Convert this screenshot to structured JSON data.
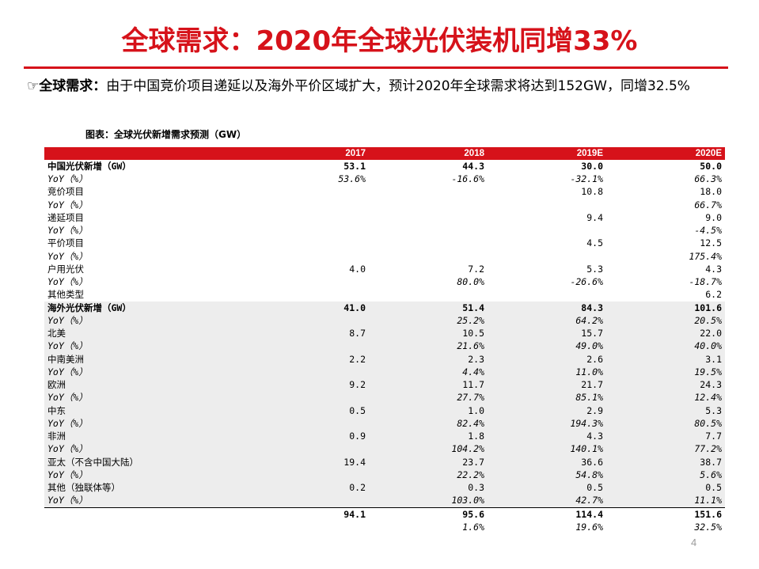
{
  "title": "全球需求：2020年全球光伏装机同增33%",
  "bullet": {
    "mark": "☞",
    "head": "全球需求：",
    "body": "由于中国竞价项目递延以及海外平价区域扩大，预计2020年全球需求将达到152GW，同增32.5%"
  },
  "table_caption": "图表：全球光伏新增需求预测（GW）",
  "table": {
    "columns": [
      "",
      "2017",
      "2018",
      "2019E",
      "2020E"
    ],
    "rows": [
      {
        "label": "中国光伏新增（GW）",
        "values": [
          "53.1",
          "44.3",
          "30.0",
          "50.0"
        ],
        "style": "bold"
      },
      {
        "label": "YoY（%）",
        "values": [
          "53.6%",
          "-16.6%",
          "-32.1%",
          "66.3%"
        ],
        "style": "italic"
      },
      {
        "label": "竞价项目",
        "values": [
          "",
          "",
          "10.8",
          "18.0"
        ],
        "style": "ind1"
      },
      {
        "label": "YoY（%）",
        "values": [
          "",
          "",
          "",
          "66.7%"
        ],
        "style": "italic ind1"
      },
      {
        "label": "递延项目",
        "values": [
          "",
          "",
          "9.4",
          "9.0"
        ],
        "style": "ind1"
      },
      {
        "label": "YoY（%）",
        "values": [
          "",
          "",
          "",
          "-4.5%"
        ],
        "style": "italic ind1"
      },
      {
        "label": "平价项目",
        "values": [
          "",
          "",
          "4.5",
          "12.5"
        ],
        "style": "ind1"
      },
      {
        "label": "YoY（%）",
        "values": [
          "",
          "",
          "",
          "175.4%"
        ],
        "style": "italic ind1"
      },
      {
        "label": "户用光伏",
        "values": [
          "4.0",
          "7.2",
          "5.3",
          "4.3"
        ],
        "style": "ind1"
      },
      {
        "label": "YoY（%）",
        "values": [
          "",
          "80.0%",
          "-26.6%",
          "-18.7%"
        ],
        "style": "italic ind1"
      },
      {
        "label": "其他类型",
        "values": [
          "",
          "",
          "",
          "6.2"
        ],
        "style": "ind1"
      },
      {
        "label": "海外光伏新增（GW）",
        "values": [
          "41.0",
          "51.4",
          "84.3",
          "101.6"
        ],
        "style": "bold overseas"
      },
      {
        "label": "YoY（%）",
        "values": [
          "",
          "25.2%",
          "64.2%",
          "20.5%"
        ],
        "style": "italic overseas"
      },
      {
        "label": "北美",
        "values": [
          "8.7",
          "10.5",
          "15.7",
          "22.0"
        ],
        "style": "ind1 overseas"
      },
      {
        "label": "YoY（%）",
        "values": [
          "",
          "21.6%",
          "49.0%",
          "40.0%"
        ],
        "style": "italic ind1 overseas"
      },
      {
        "label": "中南美洲",
        "values": [
          "2.2",
          "2.3",
          "2.6",
          "3.1"
        ],
        "style": "ind1 overseas"
      },
      {
        "label": "YoY（%）",
        "values": [
          "",
          "4.4%",
          "11.0%",
          "19.5%"
        ],
        "style": "italic ind1 overseas"
      },
      {
        "label": "欧洲",
        "values": [
          "9.2",
          "11.7",
          "21.7",
          "24.3"
        ],
        "style": "ind1 overseas"
      },
      {
        "label": "YoY（%）",
        "values": [
          "",
          "27.7%",
          "85.1%",
          "12.4%"
        ],
        "style": "italic ind1 overseas"
      },
      {
        "label": "中东",
        "values": [
          "0.5",
          "1.0",
          "2.9",
          "5.3"
        ],
        "style": "ind1 overseas"
      },
      {
        "label": "YoY（%）",
        "values": [
          "",
          "82.4%",
          "194.3%",
          "80.5%"
        ],
        "style": "italic ind1 overseas"
      },
      {
        "label": "非洲",
        "values": [
          "0.9",
          "1.8",
          "4.3",
          "7.7"
        ],
        "style": "ind1 overseas"
      },
      {
        "label": "YoY（%）",
        "values": [
          "",
          "104.2%",
          "140.1%",
          "77.2%"
        ],
        "style": "italic ind1 overseas"
      },
      {
        "label": "亚太（不含中国大陆）",
        "values": [
          "19.4",
          "23.7",
          "36.6",
          "38.7"
        ],
        "style": "ind1 overseas"
      },
      {
        "label": "YoY（%）",
        "values": [
          "",
          "22.2%",
          "54.8%",
          "5.6%"
        ],
        "style": "italic ind1 overseas"
      },
      {
        "label": "其他（独联体等）",
        "values": [
          "0.2",
          "0.3",
          "0.5",
          "0.5"
        ],
        "style": "ind1 overseas"
      },
      {
        "label": "YoY（%）",
        "values": [
          "",
          "103.0%",
          "42.7%",
          "11.1%"
        ],
        "style": "italic ind1 overseas"
      },
      {
        "label": "",
        "values": [
          "94.1",
          "95.6",
          "114.4",
          "151.6"
        ],
        "style": "bold total"
      },
      {
        "label": "",
        "values": [
          "",
          "1.6%",
          "19.6%",
          "32.5%"
        ],
        "style": "italic"
      }
    ]
  },
  "page_number": "4",
  "colors": {
    "accent": "#d6121a",
    "overseas_bg": "#ededed"
  }
}
